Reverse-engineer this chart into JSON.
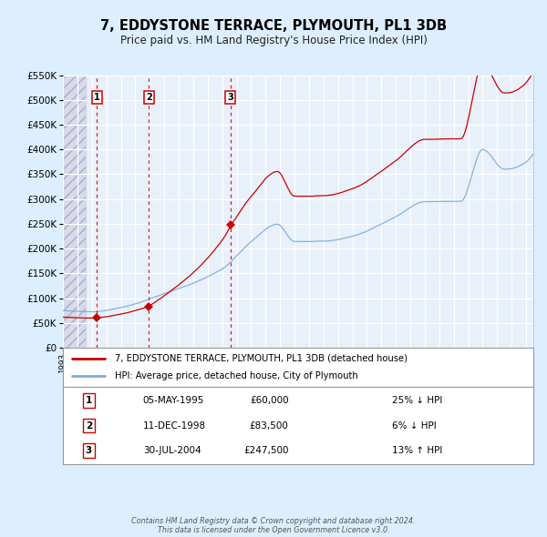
{
  "title": "7, EDDYSTONE TERRACE, PLYMOUTH, PL1 3DB",
  "subtitle": "Price paid vs. HM Land Registry's House Price Index (HPI)",
  "legend_line1": "7, EDDYSTONE TERRACE, PLYMOUTH, PL1 3DB (detached house)",
  "legend_line2": "HPI: Average price, detached house, City of Plymouth",
  "transactions": [
    {
      "num": 1,
      "date": "05-MAY-1995",
      "date_val": 1995.35,
      "price": 60000,
      "hpi_label": "25% ↓ HPI"
    },
    {
      "num": 2,
      "date": "11-DEC-1998",
      "date_val": 1998.94,
      "price": 83500,
      "hpi_label": "6% ↓ HPI"
    },
    {
      "num": 3,
      "date": "30-JUL-2004",
      "date_val": 2004.58,
      "price": 247500,
      "hpi_label": "13% ↑ HPI"
    }
  ],
  "table_rows": [
    [
      1,
      "05-MAY-1995",
      "£60,000",
      "25% ↓ HPI"
    ],
    [
      2,
      "11-DEC-1998",
      "£83,500",
      "6% ↓ HPI"
    ],
    [
      3,
      "30-JUL-2004",
      "£247,500",
      "13% ↑ HPI"
    ]
  ],
  "hpi_color": "#7aacdc",
  "price_color": "#cc0000",
  "dashed_line_color": "#cc0000",
  "background_color": "#ddeeff",
  "plot_bg_color": "#e8f0fa",
  "grid_color": "#ffffff",
  "hatch_color": "#c8c8d8",
  "ylim": [
    0,
    550000
  ],
  "yticks": [
    0,
    50000,
    100000,
    150000,
    200000,
    250000,
    300000,
    350000,
    400000,
    450000,
    500000,
    550000
  ],
  "footer": "Contains HM Land Registry data © Crown copyright and database right 2024.\nThis data is licensed under the Open Government Licence v3.0.",
  "xstart": 1993.0,
  "xend": 2025.5
}
